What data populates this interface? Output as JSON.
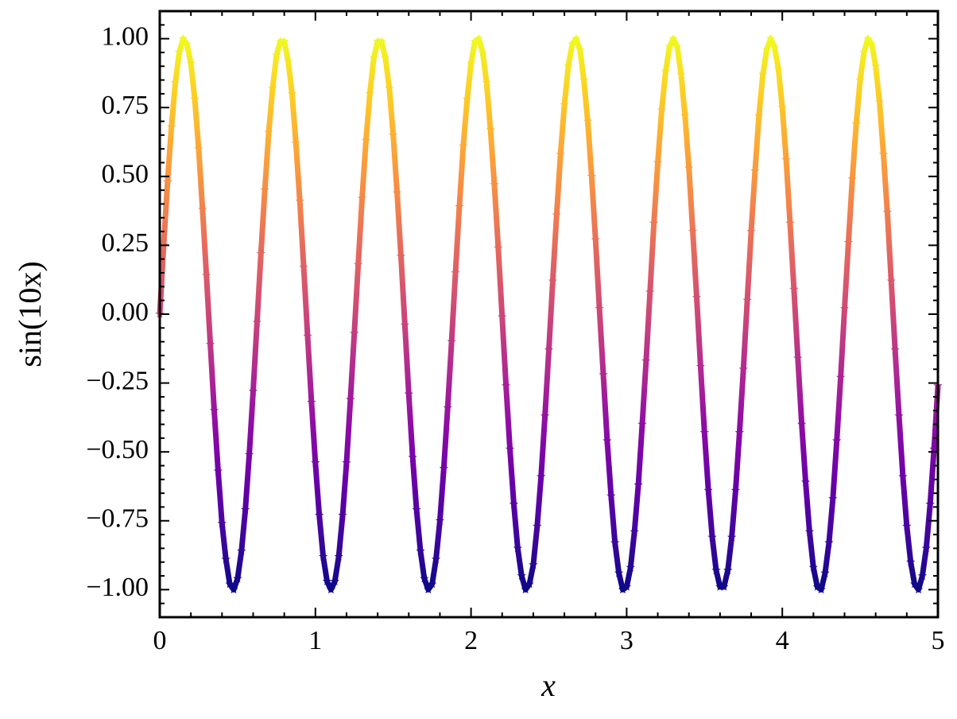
{
  "chart_data": {
    "type": "scatter",
    "xlabel": "x",
    "ylabel": "sin(10x)",
    "colormap": "plasma",
    "marker": "*",
    "x": [
      0,
      0.025,
      0.05,
      0.075,
      0.1,
      0.125,
      0.15,
      0.175,
      0.2,
      0.225,
      0.25,
      0.275,
      0.3,
      0.325,
      0.35,
      0.375,
      0.4,
      0.425,
      0.45,
      0.475,
      0.5,
      0.525,
      0.55,
      0.575,
      0.6,
      0.625,
      0.65,
      0.675,
      0.7,
      0.725,
      0.75,
      0.775,
      0.8,
      0.825,
      0.85,
      0.875,
      0.9,
      0.925,
      0.95,
      0.975,
      1,
      1.025,
      1.05,
      1.075,
      1.1,
      1.125,
      1.15,
      1.175,
      1.2,
      1.225,
      1.25,
      1.275,
      1.3,
      1.325,
      1.35,
      1.375,
      1.4,
      1.425,
      1.45,
      1.475,
      1.5,
      1.525,
      1.55,
      1.575,
      1.6,
      1.625,
      1.65,
      1.675,
      1.7,
      1.725,
      1.75,
      1.775,
      1.8,
      1.825,
      1.85,
      1.875,
      1.9,
      1.925,
      1.95,
      1.975,
      2,
      2.025,
      2.05,
      2.075,
      2.1,
      2.125,
      2.15,
      2.175,
      2.2,
      2.225,
      2.25,
      2.275,
      2.3,
      2.325,
      2.35,
      2.375,
      2.4,
      2.425,
      2.45,
      2.475,
      2.5,
      2.525,
      2.55,
      2.575,
      2.6,
      2.625,
      2.65,
      2.675,
      2.7,
      2.725,
      2.75,
      2.775,
      2.8,
      2.825,
      2.85,
      2.875,
      2.9,
      2.925,
      2.95,
      2.975,
      3,
      3.025,
      3.05,
      3.075,
      3.1,
      3.125,
      3.15,
      3.175,
      3.2,
      3.225,
      3.25,
      3.275,
      3.3,
      3.325,
      3.35,
      3.375,
      3.4,
      3.425,
      3.45,
      3.475,
      3.5,
      3.525,
      3.55,
      3.575,
      3.6,
      3.625,
      3.65,
      3.675,
      3.7,
      3.725,
      3.75,
      3.775,
      3.8,
      3.825,
      3.85,
      3.875,
      3.9,
      3.925,
      3.95,
      3.975,
      4,
      4.025,
      4.05,
      4.075,
      4.1,
      4.125,
      4.15,
      4.175,
      4.2,
      4.225,
      4.25,
      4.275,
      4.3,
      4.325,
      4.35,
      4.375,
      4.4,
      4.425,
      4.45,
      4.475,
      4.5,
      4.525,
      4.55,
      4.575,
      4.6,
      4.625,
      4.65,
      4.675,
      4.7,
      4.725,
      4.75,
      4.775,
      4.8,
      4.825,
      4.85,
      4.875,
      4.9,
      4.925,
      4.95,
      4.975,
      5
    ],
    "values": [
      0,
      0.25,
      0.48,
      0.68,
      0.84,
      0.95,
      1,
      0.98,
      0.91,
      0.78,
      0.6,
      0.38,
      0.14,
      -0.11,
      -0.35,
      -0.57,
      -0.76,
      -0.89,
      -0.98,
      -1,
      -0.96,
      -0.86,
      -0.71,
      -0.51,
      -0.28,
      -0.03,
      0.22,
      0.45,
      0.66,
      0.82,
      0.94,
      0.99,
      0.99,
      0.92,
      0.8,
      0.62,
      0.41,
      0.17,
      -0.08,
      -0.32,
      -0.54,
      -0.73,
      -0.88,
      -0.97,
      -1,
      -0.97,
      -0.88,
      -0.73,
      -0.54,
      -0.31,
      -0.07,
      0.18,
      0.42,
      0.63,
      0.8,
      0.93,
      0.99,
      0.99,
      0.93,
      0.82,
      0.65,
      0.44,
      0.21,
      -0.04,
      -0.29,
      -0.52,
      -0.71,
      -0.86,
      -0.96,
      -1,
      -0.98,
      -0.89,
      -0.75,
      -0.56,
      -0.34,
      -0.1,
      0.15,
      0.39,
      0.61,
      0.78,
      0.91,
      0.99,
      1,
      0.95,
      0.84,
      0.67,
      0.47,
      0.24,
      -0.01,
      -0.26,
      -0.49,
      -0.69,
      -0.85,
      -0.95,
      -1,
      -0.98,
      -0.91,
      -0.77,
      -0.59,
      -0.37,
      -0.13,
      0.12,
      0.36,
      0.58,
      0.76,
      0.9,
      0.98,
      1,
      0.96,
      0.85,
      0.7,
      0.5,
      0.27,
      0.02,
      -0.22,
      -0.46,
      -0.66,
      -0.83,
      -0.94,
      -1,
      -0.99,
      -0.92,
      -0.79,
      -0.62,
      -0.4,
      -0.17,
      0.08,
      0.33,
      0.55,
      0.74,
      0.88,
      0.97,
      1,
      0.97,
      0.87,
      0.72,
      0.53,
      0.3,
      0.06,
      -0.19,
      -0.43,
      -0.64,
      -0.81,
      -0.93,
      -0.99,
      -0.99,
      -0.93,
      -0.81,
      -0.64,
      -0.43,
      -0.2,
      0.05,
      0.3,
      0.52,
      0.72,
      0.87,
      0.96,
      1,
      0.97,
      0.89,
      0.75,
      0.56,
      0.33,
      0.09,
      -0.16,
      -0.4,
      -0.61,
      -0.79,
      -0.92,
      -0.99,
      -1,
      -0.94,
      -0.83,
      -0.67,
      -0.46,
      -0.23,
      0.02,
      0.26,
      0.49,
      0.69,
      0.85,
      0.95,
      1,
      0.98,
      0.9,
      0.77,
      0.58,
      0.37,
      0.12,
      -0.13,
      -0.37,
      -0.59,
      -0.77,
      -0.9,
      -0.98,
      -1,
      -0.95,
      -0.85,
      -0.69,
      -0.49,
      -0.26
    ],
    "xlim": [
      0,
      5
    ],
    "ylim": [
      -1.1,
      1.1
    ],
    "xticks": [
      0,
      1,
      2,
      3,
      4,
      5
    ],
    "yticks": [
      {
        "value": -1,
        "label": "−1.00"
      },
      {
        "value": -0.75,
        "label": "−0.75"
      },
      {
        "value": -0.5,
        "label": "−0.50"
      },
      {
        "value": -0.25,
        "label": "−0.25"
      },
      {
        "value": 0,
        "label": "0.00"
      },
      {
        "value": 0.25,
        "label": "0.25"
      },
      {
        "value": 0.5,
        "label": "0.50"
      },
      {
        "value": 0.75,
        "label": "0.75"
      },
      {
        "value": 1,
        "label": "1.00"
      }
    ],
    "xminorticks": [
      0.2,
      0.4,
      0.6,
      0.8,
      1.2,
      1.4,
      1.6,
      1.8,
      2.2,
      2.4,
      2.6,
      2.8,
      3.2,
      3.4,
      3.6,
      3.8,
      4.2,
      4.4,
      4.6,
      4.8
    ],
    "yminorticks": [
      -1.05,
      -0.95,
      -0.9,
      -0.85,
      -0.8,
      -0.7,
      -0.65,
      -0.6,
      -0.55,
      -0.45,
      -0.4,
      -0.35,
      -0.3,
      -0.2,
      -0.15,
      -0.1,
      -0.05,
      0.05,
      0.1,
      0.15,
      0.2,
      0.3,
      0.35,
      0.4,
      0.45,
      0.55,
      0.6,
      0.65,
      0.7,
      0.8,
      0.85,
      0.9,
      0.95,
      1.05
    ]
  }
}
